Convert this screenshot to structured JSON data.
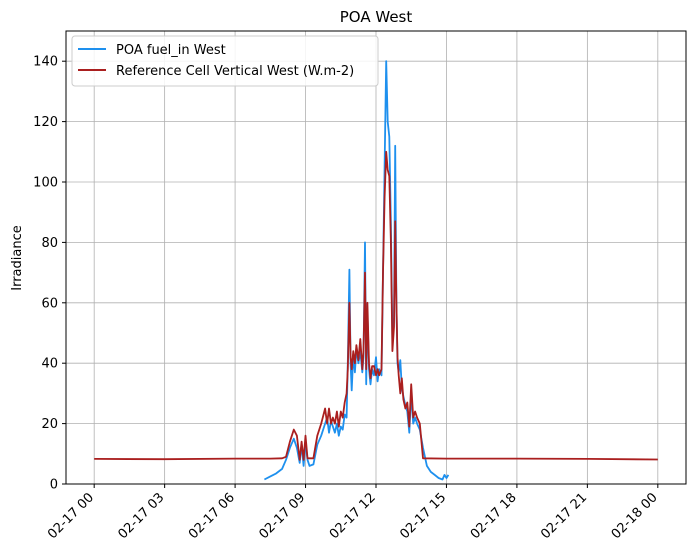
{
  "chart_data": {
    "type": "line",
    "title": "POA West",
    "xlabel": "",
    "ylabel": "Irradiance",
    "x_axis": "datetime",
    "xlim": [
      "2017-02-16T22:48",
      "2017-02-18T01:12"
    ],
    "ylim": [
      0,
      150
    ],
    "xticks": [
      {
        "t": "2017-02-17T00:00",
        "label": "02-17 00"
      },
      {
        "t": "2017-02-17T03:00",
        "label": "02-17 03"
      },
      {
        "t": "2017-02-17T06:00",
        "label": "02-17 06"
      },
      {
        "t": "2017-02-17T09:00",
        "label": "02-17 09"
      },
      {
        "t": "2017-02-17T12:00",
        "label": "02-17 12"
      },
      {
        "t": "2017-02-17T15:00",
        "label": "02-17 15"
      },
      {
        "t": "2017-02-17T18:00",
        "label": "02-17 18"
      },
      {
        "t": "2017-02-17T21:00",
        "label": "02-17 21"
      },
      {
        "t": "2017-02-18T00:00",
        "label": "02-18 00"
      }
    ],
    "yticks": [
      0,
      20,
      40,
      60,
      80,
      100,
      120,
      140
    ],
    "grid": true,
    "legend_position": "top-left",
    "series": [
      {
        "name": "POA fuel_in West",
        "color": "#1e90ee",
        "points": [
          [
            "2017-02-17T07:15",
            1.5
          ],
          [
            "2017-02-17T07:30",
            2.5
          ],
          [
            "2017-02-17T07:45",
            3.5
          ],
          [
            "2017-02-17T08:00",
            5
          ],
          [
            "2017-02-17T08:10",
            8
          ],
          [
            "2017-02-17T08:20",
            12
          ],
          [
            "2017-02-17T08:30",
            15
          ],
          [
            "2017-02-17T08:38",
            12
          ],
          [
            "2017-02-17T08:45",
            7
          ],
          [
            "2017-02-17T08:50",
            13
          ],
          [
            "2017-02-17T08:55",
            6
          ],
          [
            "2017-02-17T09:00",
            14
          ],
          [
            "2017-02-17T09:05",
            8
          ],
          [
            "2017-02-17T09:10",
            6
          ],
          [
            "2017-02-17T09:20",
            6.5
          ],
          [
            "2017-02-17T09:30",
            13
          ],
          [
            "2017-02-17T09:40",
            16
          ],
          [
            "2017-02-17T09:50",
            20
          ],
          [
            "2017-02-17T09:55",
            22
          ],
          [
            "2017-02-17T10:00",
            17
          ],
          [
            "2017-02-17T10:05",
            21
          ],
          [
            "2017-02-17T10:10",
            19
          ],
          [
            "2017-02-17T10:15",
            17
          ],
          [
            "2017-02-17T10:20",
            20
          ],
          [
            "2017-02-17T10:25",
            16
          ],
          [
            "2017-02-17T10:30",
            19
          ],
          [
            "2017-02-17T10:35",
            18
          ],
          [
            "2017-02-17T10:40",
            23
          ],
          [
            "2017-02-17T10:45",
            22
          ],
          [
            "2017-02-17T10:48",
            40
          ],
          [
            "2017-02-17T10:52",
            71
          ],
          [
            "2017-02-17T10:55",
            40
          ],
          [
            "2017-02-17T10:58",
            31
          ],
          [
            "2017-02-17T11:02",
            43
          ],
          [
            "2017-02-17T11:06",
            37
          ],
          [
            "2017-02-17T11:10",
            45
          ],
          [
            "2017-02-17T11:15",
            40
          ],
          [
            "2017-02-17T11:20",
            44
          ],
          [
            "2017-02-17T11:25",
            37
          ],
          [
            "2017-02-17T11:28",
            42
          ],
          [
            "2017-02-17T11:32",
            80
          ],
          [
            "2017-02-17T11:35",
            33
          ],
          [
            "2017-02-17T11:38",
            57
          ],
          [
            "2017-02-17T11:42",
            38
          ],
          [
            "2017-02-17T11:46",
            33
          ],
          [
            "2017-02-17T11:50",
            38
          ],
          [
            "2017-02-17T11:55",
            36
          ],
          [
            "2017-02-17T12:00",
            42
          ],
          [
            "2017-02-17T12:04",
            34
          ],
          [
            "2017-02-17T12:08",
            38
          ],
          [
            "2017-02-17T12:14",
            36
          ],
          [
            "2017-02-17T12:18",
            70
          ],
          [
            "2017-02-17T12:22",
            105
          ],
          [
            "2017-02-17T12:26",
            140
          ],
          [
            "2017-02-17T12:30",
            120
          ],
          [
            "2017-02-17T12:34",
            115
          ],
          [
            "2017-02-17T12:38",
            86
          ],
          [
            "2017-02-17T12:42",
            48
          ],
          [
            "2017-02-17T12:46",
            55
          ],
          [
            "2017-02-17T12:49",
            112
          ],
          [
            "2017-02-17T12:52",
            60
          ],
          [
            "2017-02-17T12:55",
            40
          ],
          [
            "2017-02-17T12:58",
            37
          ],
          [
            "2017-02-17T13:02",
            41
          ],
          [
            "2017-02-17T13:06",
            32
          ],
          [
            "2017-02-17T13:10",
            29
          ],
          [
            "2017-02-17T13:15",
            26
          ],
          [
            "2017-02-17T13:20",
            24
          ],
          [
            "2017-02-17T13:25",
            17
          ],
          [
            "2017-02-17T13:30",
            30
          ],
          [
            "2017-02-17T13:35",
            20
          ],
          [
            "2017-02-17T13:40",
            22
          ],
          [
            "2017-02-17T13:45",
            20
          ],
          [
            "2017-02-17T13:52",
            18
          ],
          [
            "2017-02-17T14:00",
            12
          ],
          [
            "2017-02-17T14:10",
            6
          ],
          [
            "2017-02-17T14:20",
            4
          ],
          [
            "2017-02-17T14:30",
            3
          ],
          [
            "2017-02-17T14:40",
            2
          ],
          [
            "2017-02-17T14:50",
            1.5
          ],
          [
            "2017-02-17T14:55",
            3
          ],
          [
            "2017-02-17T15:00",
            2
          ],
          [
            "2017-02-17T15:05",
            3
          ]
        ]
      },
      {
        "name": "Reference Cell Vertical West (W.m-2)",
        "color": "#aa1f1f",
        "points": [
          [
            "2017-02-17T00:00",
            8.3
          ],
          [
            "2017-02-17T03:00",
            8.2
          ],
          [
            "2017-02-17T06:00",
            8.4
          ],
          [
            "2017-02-17T07:30",
            8.4
          ],
          [
            "2017-02-17T08:00",
            8.5
          ],
          [
            "2017-02-17T08:10",
            9
          ],
          [
            "2017-02-17T08:20",
            14
          ],
          [
            "2017-02-17T08:30",
            18
          ],
          [
            "2017-02-17T08:38",
            16
          ],
          [
            "2017-02-17T08:45",
            8
          ],
          [
            "2017-02-17T08:50",
            14
          ],
          [
            "2017-02-17T08:55",
            8
          ],
          [
            "2017-02-17T09:00",
            16
          ],
          [
            "2017-02-17T09:05",
            8.5
          ],
          [
            "2017-02-17T09:20",
            8.5
          ],
          [
            "2017-02-17T09:30",
            16
          ],
          [
            "2017-02-17T09:40",
            20
          ],
          [
            "2017-02-17T09:50",
            25
          ],
          [
            "2017-02-17T09:55",
            20
          ],
          [
            "2017-02-17T10:00",
            25
          ],
          [
            "2017-02-17T10:05",
            20
          ],
          [
            "2017-02-17T10:10",
            22
          ],
          [
            "2017-02-17T10:15",
            20
          ],
          [
            "2017-02-17T10:20",
            24
          ],
          [
            "2017-02-17T10:25",
            19
          ],
          [
            "2017-02-17T10:30",
            24
          ],
          [
            "2017-02-17T10:35",
            22
          ],
          [
            "2017-02-17T10:40",
            27
          ],
          [
            "2017-02-17T10:45",
            30
          ],
          [
            "2017-02-17T10:48",
            38
          ],
          [
            "2017-02-17T10:52",
            60
          ],
          [
            "2017-02-17T10:55",
            42
          ],
          [
            "2017-02-17T10:58",
            38
          ],
          [
            "2017-02-17T11:02",
            44
          ],
          [
            "2017-02-17T11:06",
            40
          ],
          [
            "2017-02-17T11:10",
            46
          ],
          [
            "2017-02-17T11:15",
            41
          ],
          [
            "2017-02-17T11:20",
            48
          ],
          [
            "2017-02-17T11:25",
            38
          ],
          [
            "2017-02-17T11:28",
            44
          ],
          [
            "2017-02-17T11:32",
            70
          ],
          [
            "2017-02-17T11:35",
            38
          ],
          [
            "2017-02-17T11:38",
            60
          ],
          [
            "2017-02-17T11:42",
            40
          ],
          [
            "2017-02-17T11:46",
            35
          ],
          [
            "2017-02-17T11:50",
            39
          ],
          [
            "2017-02-17T11:55",
            39
          ],
          [
            "2017-02-17T12:00",
            36
          ],
          [
            "2017-02-17T12:04",
            38
          ],
          [
            "2017-02-17T12:08",
            36
          ],
          [
            "2017-02-17T12:14",
            38
          ],
          [
            "2017-02-17T12:18",
            70
          ],
          [
            "2017-02-17T12:22",
            95
          ],
          [
            "2017-02-17T12:26",
            110
          ],
          [
            "2017-02-17T12:30",
            104
          ],
          [
            "2017-02-17T12:34",
            102
          ],
          [
            "2017-02-17T12:38",
            80
          ],
          [
            "2017-02-17T12:42",
            44
          ],
          [
            "2017-02-17T12:46",
            52
          ],
          [
            "2017-02-17T12:49",
            87
          ],
          [
            "2017-02-17T12:52",
            60
          ],
          [
            "2017-02-17T12:55",
            42
          ],
          [
            "2017-02-17T12:58",
            36
          ],
          [
            "2017-02-17T13:02",
            30
          ],
          [
            "2017-02-17T13:06",
            35
          ],
          [
            "2017-02-17T13:10",
            28
          ],
          [
            "2017-02-17T13:15",
            25
          ],
          [
            "2017-02-17T13:20",
            27
          ],
          [
            "2017-02-17T13:25",
            19
          ],
          [
            "2017-02-17T13:30",
            33
          ],
          [
            "2017-02-17T13:35",
            22
          ],
          [
            "2017-02-17T13:40",
            24
          ],
          [
            "2017-02-17T13:45",
            22
          ],
          [
            "2017-02-17T13:52",
            20
          ],
          [
            "2017-02-17T14:00",
            8.5
          ],
          [
            "2017-02-17T15:00",
            8.4
          ],
          [
            "2017-02-17T18:00",
            8.4
          ],
          [
            "2017-02-17T21:00",
            8.3
          ],
          [
            "2017-02-18T00:00",
            8.1
          ]
        ]
      }
    ]
  }
}
